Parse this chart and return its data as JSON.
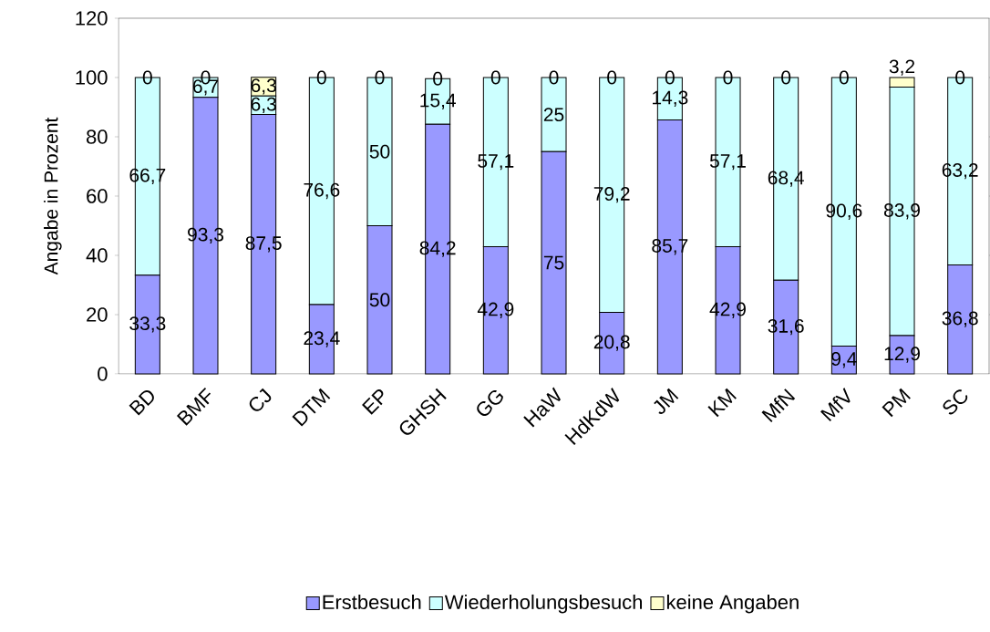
{
  "chart_data": {
    "type": "bar",
    "stacked": true,
    "ylabel": "Angabe in Prozent",
    "categories": [
      "BD",
      "BMF",
      "CJ",
      "DTM",
      "EP",
      "GHSH",
      "GG",
      "HaW",
      "HdKdW",
      "JM",
      "KM",
      "MfN",
      "MfV",
      "PM",
      "SC"
    ],
    "series": [
      {
        "name": "Erstbesuch",
        "color": "#9999ff",
        "values": [
          33.3,
          93.3,
          87.5,
          23.4,
          50,
          84.2,
          42.9,
          75,
          20.8,
          85.7,
          42.9,
          31.6,
          9.4,
          12.9,
          36.8
        ],
        "value_labels": [
          "33,3",
          "93,3",
          "87,5",
          "23,4",
          "50",
          "84,2",
          "42,9",
          "75",
          "20,8",
          "85,7",
          "42,9",
          "31,6",
          "9,4",
          "12,9",
          "36,8"
        ]
      },
      {
        "name": "Wiederholungsbesuch",
        "color": "#ccffff",
        "values": [
          66.7,
          6.7,
          6.3,
          76.6,
          50,
          15.4,
          57.1,
          25,
          79.2,
          14.3,
          57.1,
          68.4,
          90.6,
          83.9,
          63.2
        ],
        "value_labels": [
          "66,7",
          "6,7",
          "6,3",
          "76,6",
          "50",
          "15,4",
          "57,1",
          "25",
          "79,2",
          "14,3",
          "57,1",
          "68,4",
          "90,6",
          "83,9",
          "63,2"
        ]
      },
      {
        "name": "keine Angaben",
        "color": "#ffffcc",
        "values": [
          0,
          0,
          6.3,
          0,
          0,
          0,
          0,
          0,
          0,
          0,
          0,
          0,
          0,
          3.2,
          0
        ],
        "value_labels": [
          "0",
          "0",
          "6,3",
          "0",
          "0",
          "0",
          "0",
          "0",
          "0",
          "0",
          "0",
          "0",
          "0",
          "3,2",
          "0"
        ]
      }
    ],
    "ylim": [
      0,
      120
    ],
    "yticks": [
      0,
      20,
      40,
      60,
      80,
      100,
      120
    ],
    "legend": "bottom"
  }
}
